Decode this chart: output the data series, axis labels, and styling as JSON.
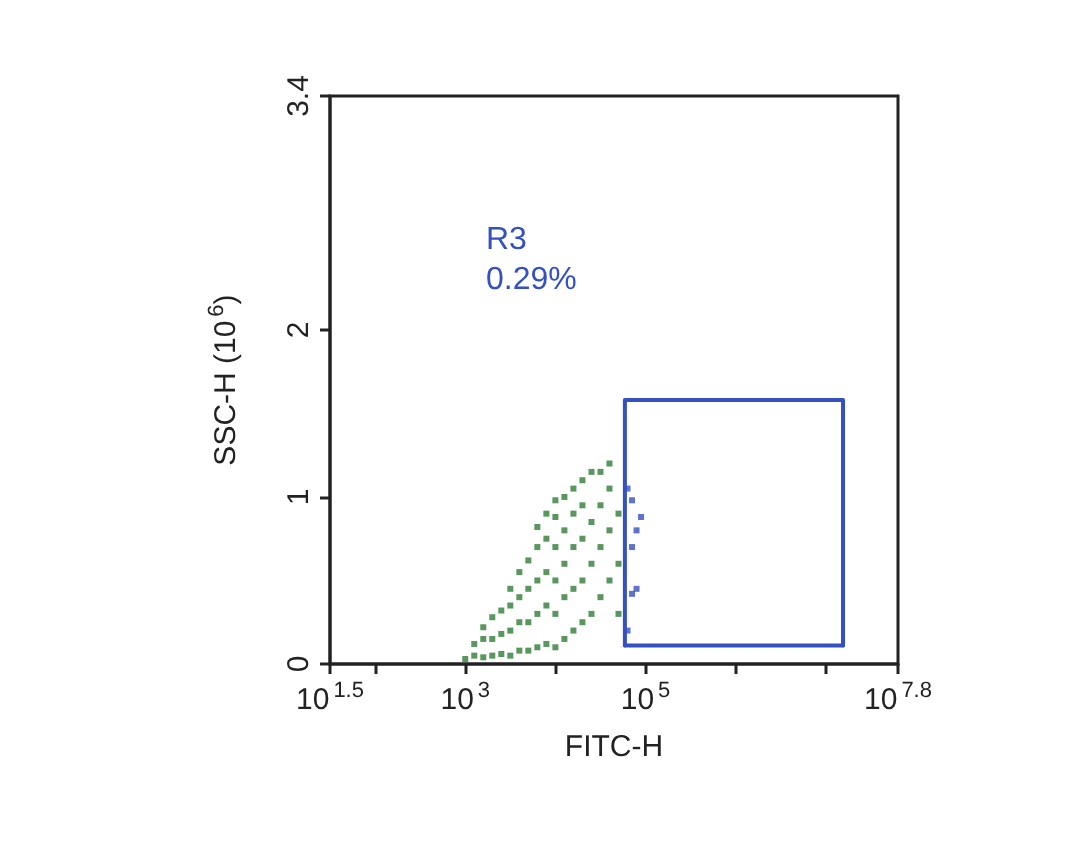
{
  "chart_data": {
    "type": "scatter",
    "xlabel": "FITC-H",
    "ylabel": "SSC-H (10$^{6}$)",
    "log": "x",
    "grid": false,
    "marker": "square",
    "xlim": [
      31.62,
      63095734
    ],
    "ylim": [
      0,
      3.4
    ],
    "xticks": [
      {
        "value": 31.62,
        "label": "10$^{1.5}$"
      },
      {
        "value": 100,
        "label": null
      },
      {
        "value": 1000,
        "label": "10$^{3}$"
      },
      {
        "value": 10000,
        "label": null
      },
      {
        "value": 100000,
        "label": "10$^{5}$"
      },
      {
        "value": 1000000,
        "label": null
      },
      {
        "value": 10000000,
        "label": null
      },
      {
        "value": 63095734,
        "label": "10$^{7.8}$"
      }
    ],
    "yticks": [
      0,
      1,
      2,
      3.4
    ],
    "annotations": [
      "R3",
      "0.29%"
    ],
    "series": [
      {
        "type": "scatter",
        "color": "#2f7d36",
        "x": [
          1000,
          1259,
          1259,
          1585,
          1585,
          1585,
          1995,
          1995,
          1995,
          2512,
          2512,
          2512,
          3162,
          3162,
          3162,
          3162,
          3981,
          3981,
          3981,
          3981,
          5012,
          5012,
          5012,
          5012,
          6310,
          6310,
          6310,
          6310,
          6310,
          7943,
          7943,
          7943,
          7943,
          7943,
          10000,
          10000,
          10000,
          10000,
          10000,
          10000,
          12589,
          12589,
          12589,
          12589,
          12589,
          15849,
          15849,
          15849,
          15849,
          15849,
          19953,
          19953,
          19953,
          19953,
          19953,
          25119,
          25119,
          25119,
          25119,
          31623,
          31623,
          31623,
          31623,
          39811,
          39811,
          39811,
          39811,
          50119,
          50119,
          50119
        ],
        "values": [
          0.03,
          0.05,
          0.12,
          0.04,
          0.15,
          0.22,
          0.05,
          0.15,
          0.28,
          0.06,
          0.18,
          0.32,
          0.05,
          0.2,
          0.35,
          0.45,
          0.08,
          0.25,
          0.4,
          0.55,
          0.08,
          0.25,
          0.45,
          0.62,
          0.1,
          0.3,
          0.5,
          0.7,
          0.82,
          0.12,
          0.35,
          0.55,
          0.75,
          0.9,
          0.1,
          0.3,
          0.5,
          0.7,
          0.88,
          0.98,
          0.15,
          0.4,
          0.6,
          0.8,
          1.0,
          0.2,
          0.45,
          0.7,
          0.9,
          1.05,
          0.25,
          0.5,
          0.75,
          0.95,
          1.1,
          0.3,
          0.6,
          0.85,
          1.15,
          0.4,
          0.7,
          0.95,
          1.15,
          0.5,
          0.8,
          1.05,
          1.2,
          0.3,
          0.6,
          0.9
        ]
      },
      {
        "type": "scatter",
        "color": "#3550c0",
        "x": [
          63096,
          70795,
          79433,
          70795,
          79433,
          89125,
          70795,
          63096
        ],
        "values": [
          0.2,
          0.42,
          0.45,
          0.7,
          0.8,
          0.88,
          0.98,
          1.05
        ]
      },
      {
        "type": "line",
        "color": "#3550c0",
        "marker": "none",
        "line_style": "solid",
        "x": [
          59000,
          59000,
          15500000,
          15500000
        ],
        "values": [
          0.11,
          1.58,
          1.58,
          0.11
        ]
      },
      {
        "type": "line",
        "color": "#3550c0",
        "marker": "none",
        "line_style": "solid",
        "x": [
          59000,
          15500000
        ],
        "values": [
          0.11,
          0.11
        ]
      }
    ]
  }
}
